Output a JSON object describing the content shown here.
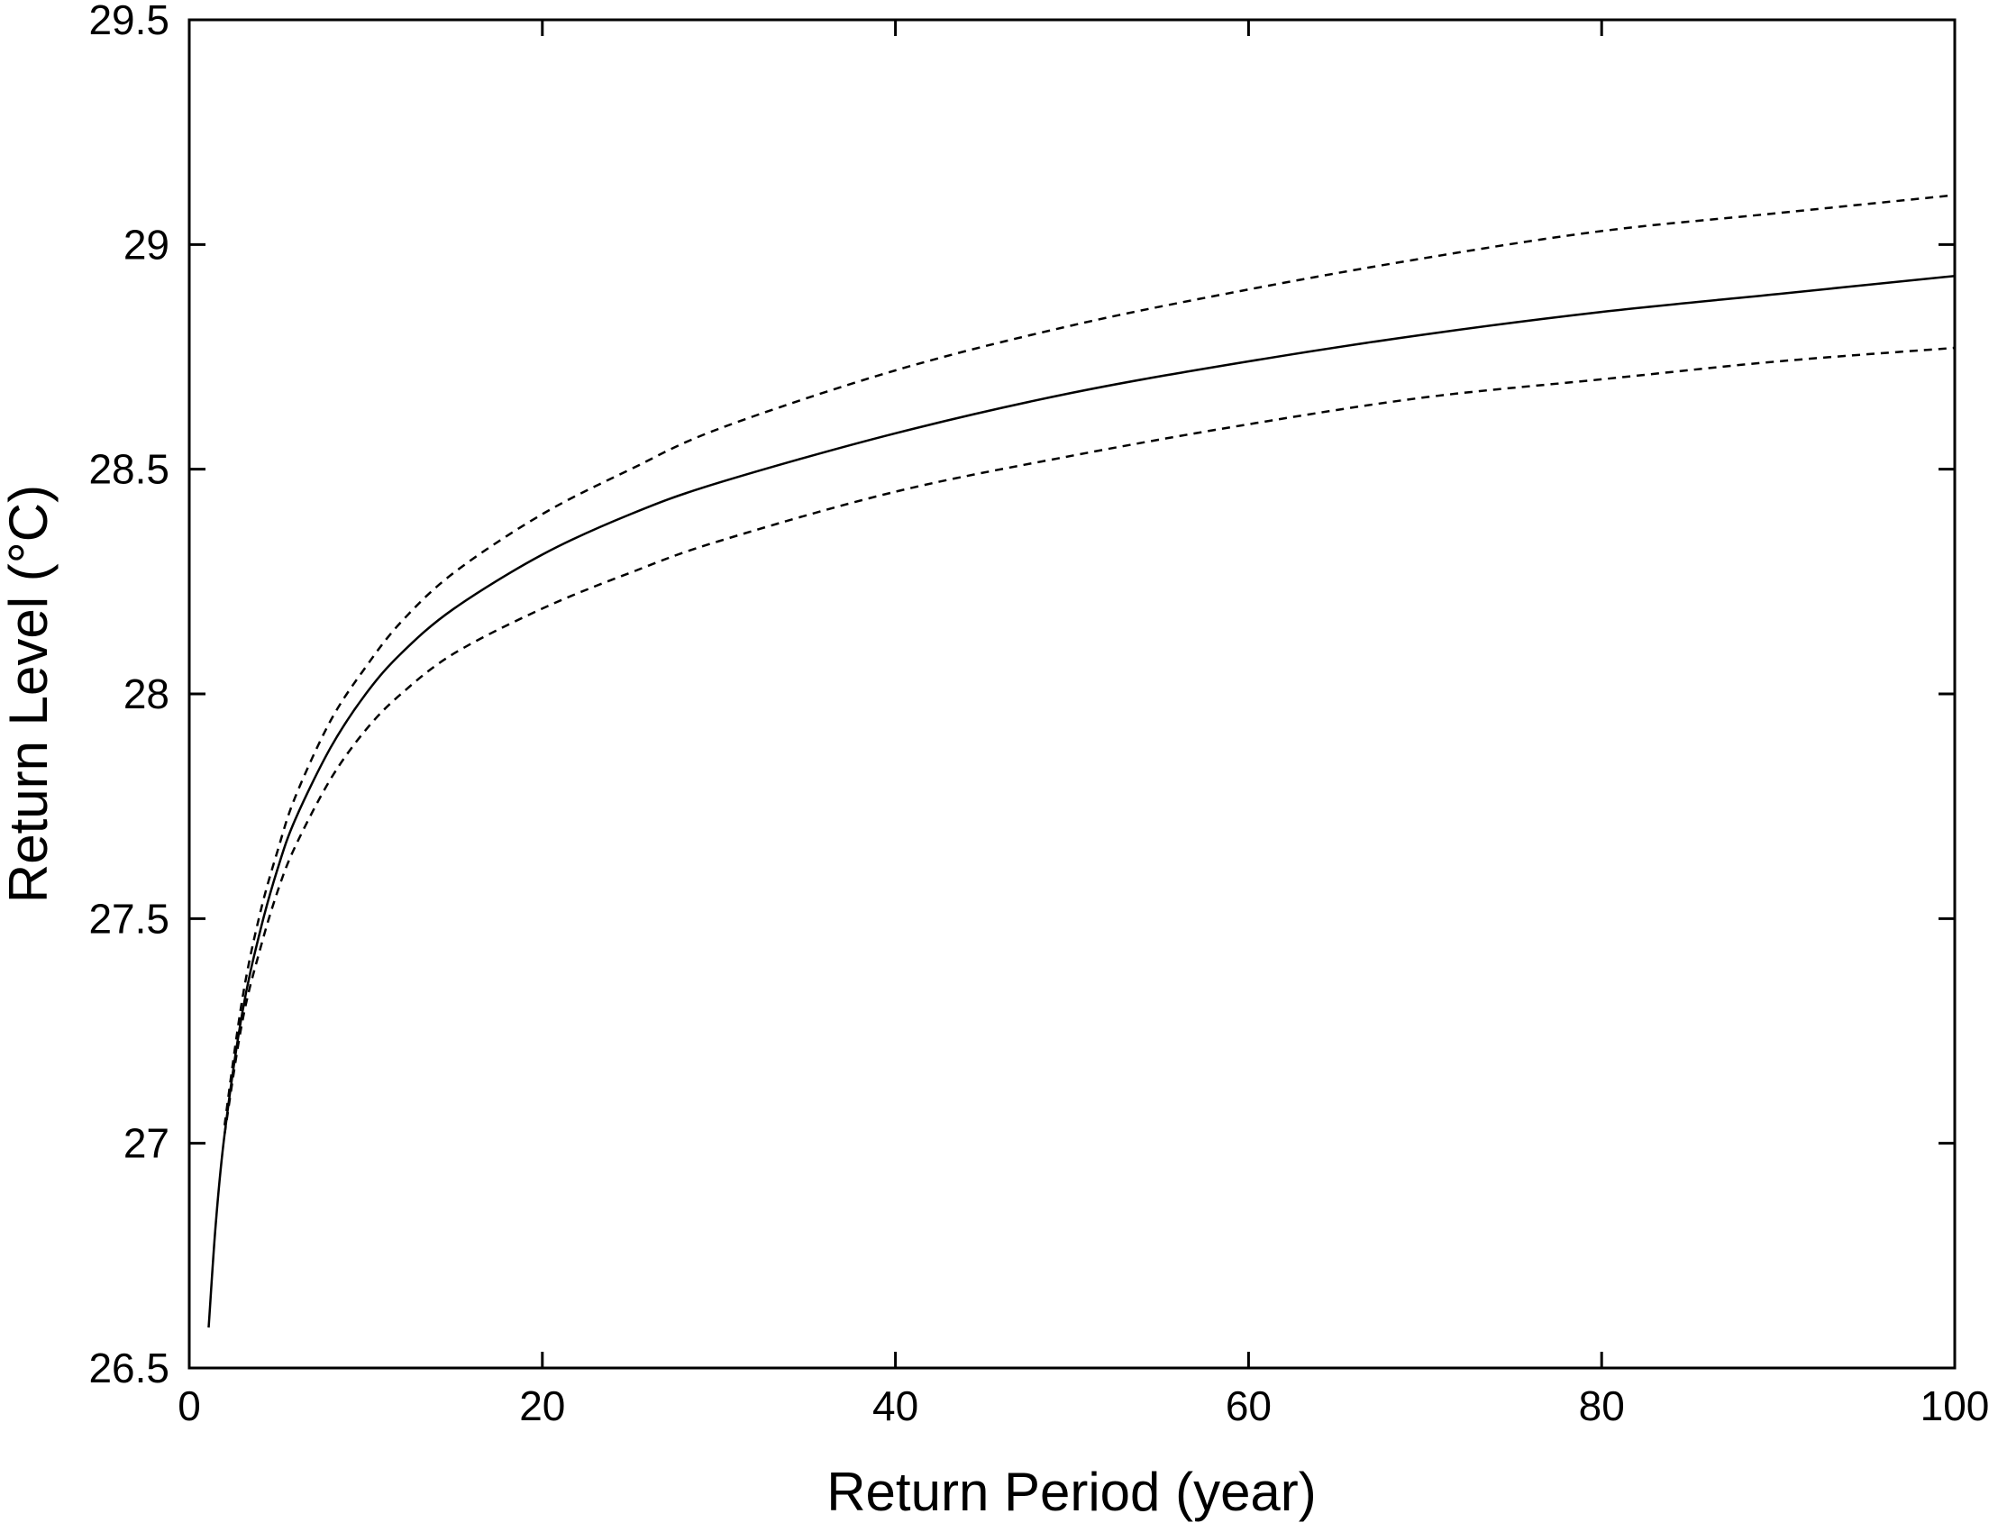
{
  "chart_data": {
    "type": "line",
    "title": "",
    "xlabel": "Return Period (year)",
    "ylabel": "Return Level (°C)",
    "xlim": [
      0,
      100
    ],
    "ylim": [
      26.5,
      29.5
    ],
    "xticks": [
      0,
      20,
      40,
      60,
      80,
      100
    ],
    "xtick_labels": [
      "0",
      "20",
      "40",
      "60",
      "80",
      "100"
    ],
    "yticks": [
      26.5,
      27,
      27.5,
      28,
      28.5,
      29,
      29.5
    ],
    "ytick_labels": [
      "26.5",
      "27",
      "27.5",
      "28",
      "28.5",
      "29",
      "29.5"
    ],
    "grid": false,
    "legend": "none",
    "series": [
      {
        "style": "solid",
        "color": "#000000",
        "x": [
          1.1,
          1.5,
          2,
          3,
          4,
          5,
          6,
          8,
          10,
          12,
          15,
          20,
          25,
          30,
          40,
          50,
          60,
          70,
          80,
          90,
          100
        ],
        "y": [
          26.59,
          26.82,
          27.02,
          27.29,
          27.47,
          27.61,
          27.72,
          27.88,
          28.0,
          28.09,
          28.19,
          28.31,
          28.4,
          28.47,
          28.58,
          28.67,
          28.74,
          28.8,
          28.85,
          28.89,
          28.93
        ]
      },
      {
        "style": "dashed",
        "color": "#000000",
        "x": [
          2,
          3,
          4,
          5,
          6,
          8,
          10,
          12,
          15,
          20,
          25,
          30,
          40,
          50,
          60,
          70,
          80,
          90,
          100
        ],
        "y": [
          27.04,
          27.32,
          27.51,
          27.65,
          27.77,
          27.94,
          28.06,
          28.16,
          28.27,
          28.4,
          28.5,
          28.59,
          28.72,
          28.82,
          28.9,
          28.97,
          29.03,
          29.07,
          29.11
        ]
      },
      {
        "style": "dashed",
        "color": "#000000",
        "x": [
          2,
          3,
          4,
          5,
          6,
          8,
          10,
          12,
          15,
          20,
          25,
          30,
          40,
          50,
          60,
          70,
          80,
          90,
          100
        ],
        "y": [
          27.02,
          27.27,
          27.43,
          27.56,
          27.66,
          27.81,
          27.92,
          28.0,
          28.09,
          28.19,
          28.27,
          28.34,
          28.45,
          28.53,
          28.6,
          28.66,
          28.7,
          28.74,
          28.77
        ]
      }
    ]
  }
}
